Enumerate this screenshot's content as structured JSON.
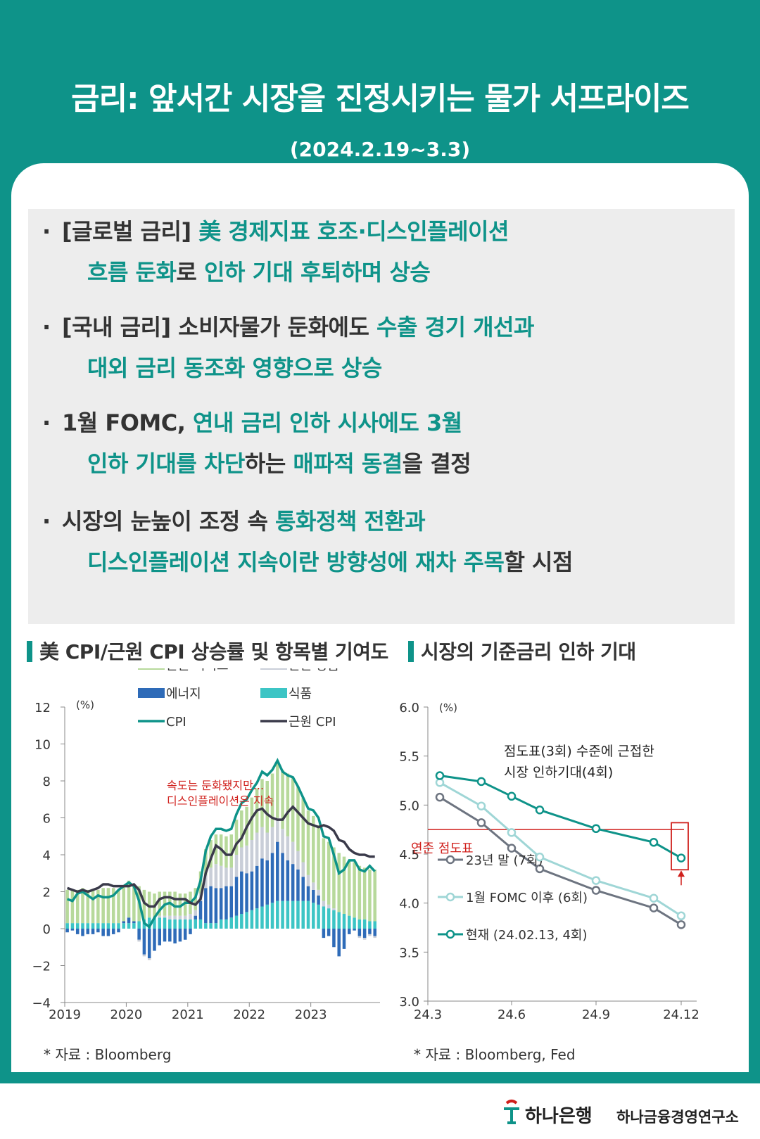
{
  "header": {
    "title": "금리: 앞서간 시장을 진정시키는 물가 서프라이즈",
    "subtitle": "(2024.2.19~3.3)"
  },
  "bullets": [
    {
      "lines": [
        [
          {
            "t": "[글로벌 금리] ",
            "h": false
          },
          {
            "t": "美 경제지표 호조·디스인플레이션",
            "h": true
          }
        ],
        [
          {
            "t": "흐름 둔화",
            "h": true
          },
          {
            "t": "로 ",
            "h": false
          },
          {
            "t": "인하 기대 후퇴하며 상승",
            "h": true
          }
        ]
      ]
    },
    {
      "lines": [
        [
          {
            "t": "[국내 금리] 소비자물가 둔화에도 ",
            "h": false
          },
          {
            "t": "수출 경기 개선과",
            "h": true
          }
        ],
        [
          {
            "t": "대외 금리 동조화 영향으로 상승",
            "h": true
          }
        ]
      ]
    },
    {
      "lines": [
        [
          {
            "t": "1월 FOMC, ",
            "h": false
          },
          {
            "t": "연내 금리 인하 시사에도 3월",
            "h": true
          }
        ],
        [
          {
            "t": "인하 기대를 차단",
            "h": true
          },
          {
            "t": "하는 ",
            "h": false
          },
          {
            "t": "매파적 동결",
            "h": true
          },
          {
            "t": "을 결정",
            "h": false
          }
        ]
      ]
    },
    {
      "lines": [
        [
          {
            "t": "시장의 눈높이 조정 속 ",
            "h": false
          },
          {
            "t": "통화정책 전환과",
            "h": true
          }
        ],
        [
          {
            "t": "디스인플레이션 지속이란 방향성에 재차 주목",
            "h": true
          },
          {
            "t": "할 시점",
            "h": false
          }
        ]
      ]
    }
  ],
  "colors": {
    "accent": "#0e9389",
    "services": "#b7d99b",
    "goods": "#c9ced8",
    "energy": "#2e6bb8",
    "food": "#3cc5c5",
    "cpi": "#0e9389",
    "core": "#3a3a4a",
    "annot": "#d0201c",
    "light": "#9fd6d6",
    "gray": "#6d7480"
  },
  "chart_data": [
    {
      "type": "bar",
      "title": "美 CPI/근원 CPI 상승률 및 항목별 기여도",
      "ylabel": "(%)",
      "ylim": [
        -4,
        12
      ],
      "yticks": [
        "12",
        "10",
        "8",
        "6",
        "4",
        "2",
        "0",
        "−2",
        "−4"
      ],
      "x_start": 2019,
      "xticks": [
        "2019",
        "2020",
        "2021",
        "2022",
        "2023"
      ],
      "legend": [
        "근원 서비스",
        "근원 상품",
        "에너지",
        "식품",
        "CPI",
        "근원 CPI"
      ],
      "annotation": [
        "속도는 둔화됐지만...",
        "디스인플레이션은 지속"
      ],
      "cpi": [
        1.6,
        1.5,
        1.9,
        2.0,
        1.8,
        1.6,
        1.8,
        1.7,
        1.7,
        1.8,
        2.1,
        2.3,
        2.5,
        2.3,
        1.5,
        0.3,
        0.1,
        0.6,
        1.0,
        1.3,
        1.4,
        1.2,
        1.2,
        1.4,
        1.4,
        1.7,
        2.6,
        4.2,
        5.0,
        5.4,
        5.4,
        5.3,
        5.4,
        6.2,
        6.8,
        7.0,
        7.5,
        7.9,
        8.5,
        8.3,
        8.6,
        9.1,
        8.5,
        8.3,
        8.2,
        7.7,
        7.1,
        6.5,
        6.4,
        6.0,
        5.0,
        4.9,
        4.0,
        3.0,
        3.2,
        3.7,
        3.7,
        3.2,
        3.1,
        3.4,
        3.1
      ],
      "core": [
        2.2,
        2.1,
        2.0,
        2.1,
        2.0,
        2.1,
        2.2,
        2.4,
        2.4,
        2.3,
        2.3,
        2.3,
        2.3,
        2.4,
        2.1,
        1.4,
        1.2,
        1.2,
        1.6,
        1.7,
        1.7,
        1.6,
        1.6,
        1.6,
        1.4,
        1.3,
        1.6,
        3.0,
        3.8,
        4.5,
        4.3,
        4.0,
        4.0,
        4.6,
        4.9,
        5.5,
        6.0,
        6.4,
        6.5,
        6.2,
        6.0,
        5.9,
        5.9,
        6.3,
        6.6,
        6.3,
        6.0,
        5.7,
        5.6,
        5.5,
        5.6,
        5.5,
        5.3,
        4.8,
        4.7,
        4.3,
        4.1,
        4.0,
        4.0,
        3.9,
        3.9
      ],
      "services": [
        1.8,
        1.8,
        1.8,
        1.9,
        1.8,
        1.8,
        1.8,
        1.9,
        1.9,
        1.9,
        1.8,
        1.9,
        2.0,
        2.0,
        1.9,
        1.6,
        1.4,
        1.3,
        1.3,
        1.3,
        1.3,
        1.3,
        1.2,
        1.2,
        1.2,
        1.2,
        1.2,
        1.4,
        1.5,
        1.6,
        1.7,
        1.7,
        1.8,
        1.9,
        2.0,
        2.1,
        2.3,
        2.4,
        2.6,
        2.8,
        2.9,
        3.1,
        3.2,
        3.4,
        3.5,
        3.5,
        3.5,
        3.5,
        3.6,
        3.5,
        3.4,
        3.4,
        3.3,
        3.2,
        3.1,
        3.0,
        3.0,
        2.9,
        2.8,
        2.8,
        2.8
      ],
      "goods": [
        0.0,
        0.0,
        0.0,
        0.0,
        0.0,
        0.0,
        0.0,
        0.0,
        0.0,
        0.0,
        0.0,
        0.0,
        0.0,
        0.0,
        -0.1,
        -0.1,
        -0.1,
        0.0,
        0.1,
        0.1,
        0.2,
        0.2,
        0.2,
        0.2,
        0.3,
        0.3,
        0.4,
        0.7,
        1.0,
        1.3,
        1.2,
        1.0,
        1.0,
        1.2,
        1.3,
        1.5,
        1.7,
        1.8,
        1.7,
        1.5,
        1.4,
        1.3,
        1.3,
        1.3,
        1.2,
        1.0,
        0.8,
        0.6,
        0.4,
        0.3,
        0.3,
        0.2,
        0.1,
        0.0,
        0.0,
        0.0,
        0.0,
        -0.1,
        -0.1,
        -0.1,
        -0.1
      ],
      "energy": [
        -0.2,
        -0.1,
        -0.3,
        -0.4,
        -0.3,
        -0.3,
        -0.2,
        -0.4,
        -0.4,
        -0.3,
        -0.2,
        0.1,
        0.3,
        0.1,
        -0.6,
        -1.4,
        -1.6,
        -1.2,
        -0.9,
        -0.7,
        -0.7,
        -0.8,
        -0.7,
        -0.6,
        -0.3,
        0.2,
        1.0,
        1.9,
        2.0,
        1.9,
        1.7,
        1.8,
        1.7,
        2.1,
        2.3,
        2.1,
        2.1,
        2.3,
        2.6,
        2.4,
        2.7,
        3.2,
        2.6,
        2.2,
        2.0,
        1.7,
        1.3,
        0.8,
        0.7,
        0.5,
        -0.5,
        -0.4,
        -1.0,
        -1.5,
        -1.1,
        -0.3,
        -0.1,
        -0.4,
        -0.5,
        -0.3,
        -0.4
      ],
      "food": [
        0.3,
        0.3,
        0.3,
        0.3,
        0.3,
        0.3,
        0.3,
        0.3,
        0.3,
        0.3,
        0.3,
        0.3,
        0.3,
        0.3,
        0.4,
        0.5,
        0.6,
        0.6,
        0.6,
        0.6,
        0.5,
        0.5,
        0.5,
        0.5,
        0.5,
        0.5,
        0.5,
        0.3,
        0.3,
        0.3,
        0.5,
        0.5,
        0.6,
        0.7,
        0.8,
        0.9,
        1.0,
        1.1,
        1.2,
        1.3,
        1.4,
        1.5,
        1.5,
        1.5,
        1.5,
        1.5,
        1.5,
        1.5,
        1.4,
        1.3,
        1.2,
        1.1,
        1.0,
        0.9,
        0.8,
        0.7,
        0.6,
        0.5,
        0.5,
        0.4,
        0.4
      ]
    },
    {
      "type": "line",
      "title": "시장의 기준금리 인하 기대",
      "ylabel": "(%)",
      "ylim": [
        3.0,
        6.0
      ],
      "yticks": [
        "6.0",
        "5.5",
        "5.0",
        "4.5",
        "4.0",
        "3.5",
        "3.0"
      ],
      "x": [
        "24.3",
        "24.5",
        "24.6",
        "24.7",
        "24.9",
        "24.11",
        "24.12"
      ],
      "xticks": [
        "24.3",
        "24.6",
        "24.9",
        "24.12"
      ],
      "series": [
        {
          "name": "23년 말 (7회)",
          "values": [
            5.08,
            4.82,
            4.56,
            4.35,
            4.13,
            3.95,
            3.78
          ]
        },
        {
          "name": "1월 FOMC 이후 (6회)",
          "values": [
            5.23,
            4.99,
            4.72,
            4.47,
            4.23,
            4.05,
            3.87
          ]
        },
        {
          "name": "현재 (24.02.13, 4회)",
          "values": [
            5.3,
            5.24,
            5.09,
            4.95,
            4.76,
            4.62,
            4.46
          ]
        }
      ],
      "dot_plot": {
        "label": "연준 점도표",
        "value": 4.75
      },
      "annotation": [
        "점도표(3회) 수준에 근접한",
        "시장 인하기대(4회)"
      ]
    }
  ],
  "sources": [
    "* 자료 : Bloomberg",
    "* 자료 : Bloomberg, Fed"
  ],
  "footer": {
    "logo": "하나은행",
    "institute": "하나금융경영연구소"
  }
}
